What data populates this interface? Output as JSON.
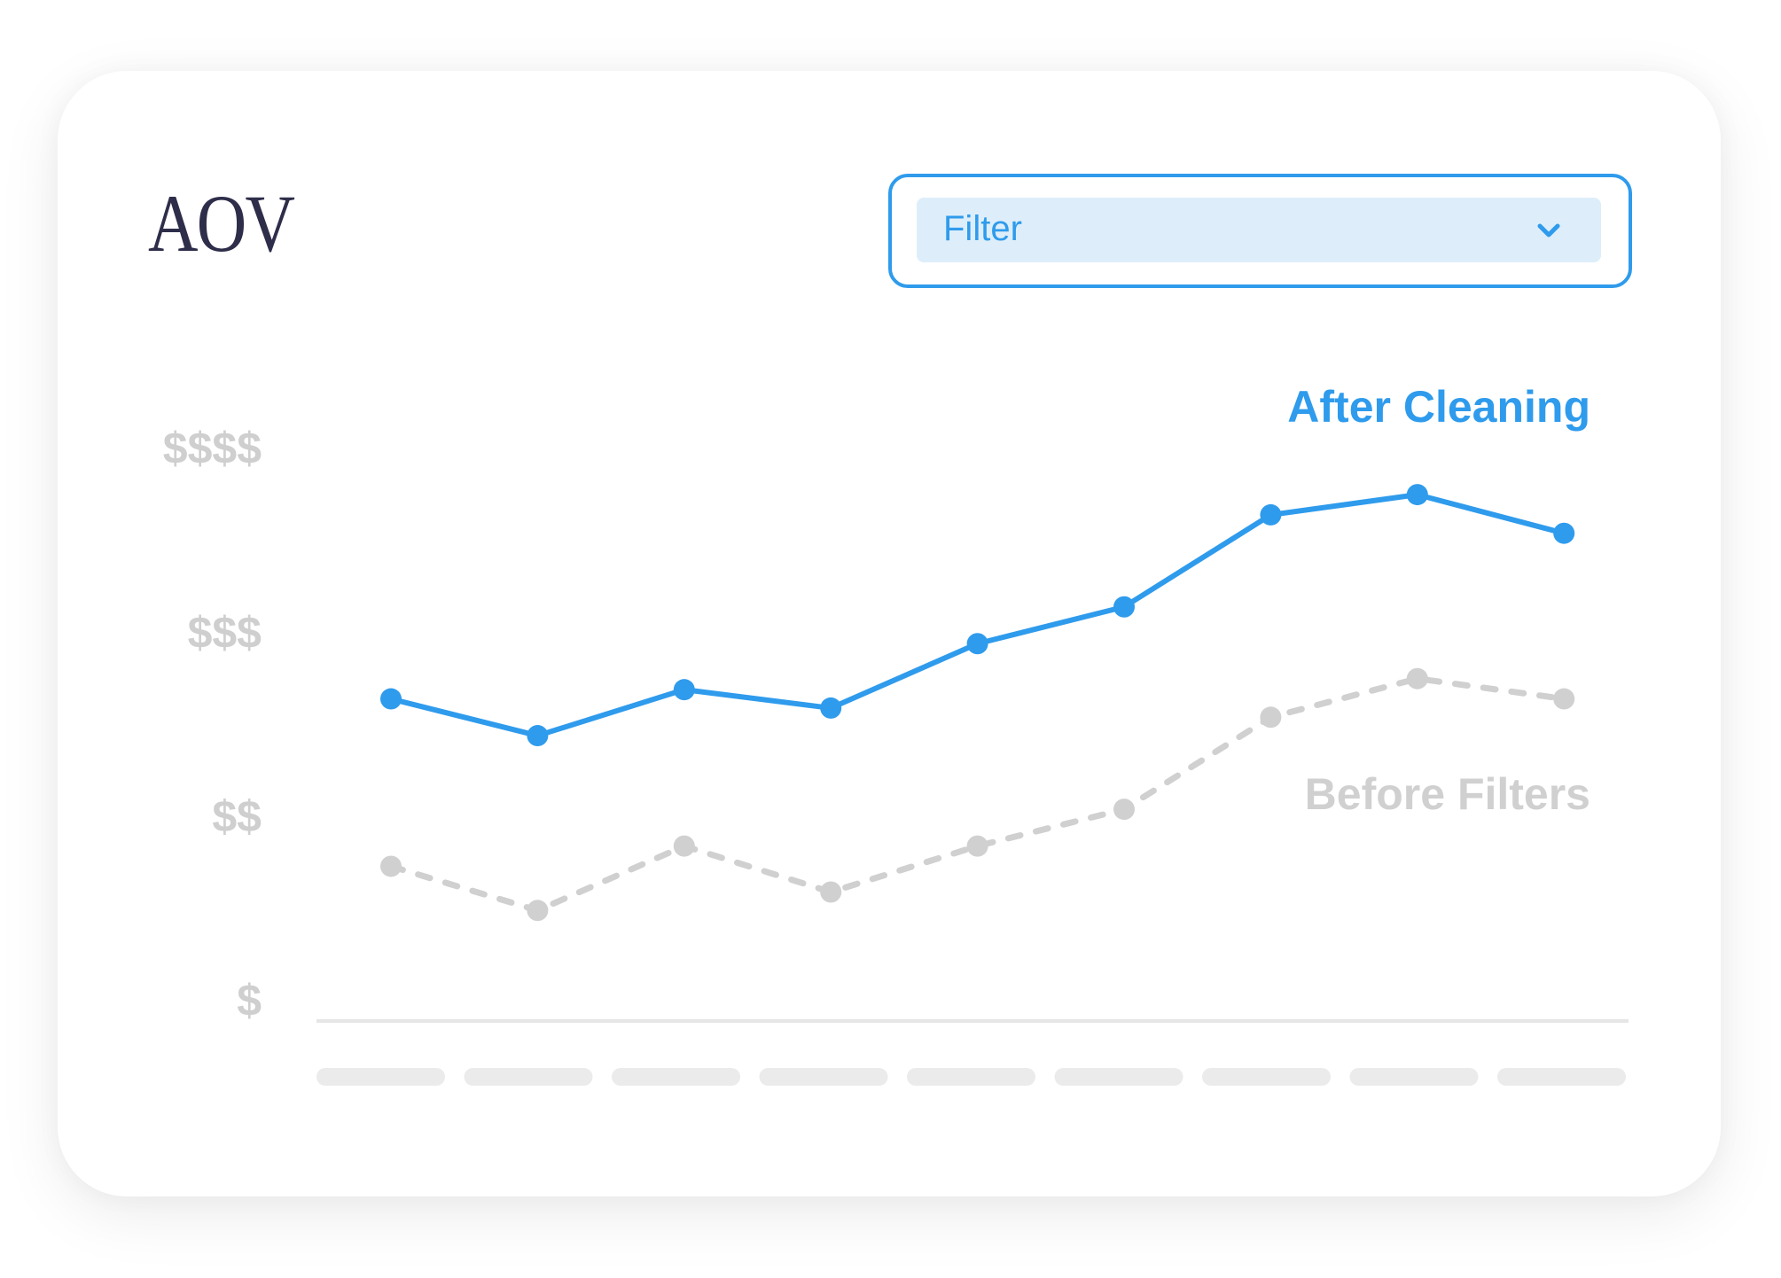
{
  "card": {
    "title": "AOV"
  },
  "filter": {
    "label": "Filter",
    "icon": "chevron-down-icon"
  },
  "chart_data": {
    "type": "line",
    "title": "",
    "xlabel": "",
    "ylabel": "",
    "categories": [
      "",
      "",
      "",
      "",
      "",
      "",
      "",
      "",
      ""
    ],
    "y_tick_labels": [
      "$",
      "$$",
      "$$$",
      "$$$$"
    ],
    "y_tick_values": [
      1,
      2,
      3,
      4
    ],
    "ylim": [
      0.89,
      4.2
    ],
    "grid": false,
    "series": [
      {
        "name": "After Cleaning",
        "color": "#2f9bec",
        "style": "solid",
        "values": [
          2.64,
          2.44,
          2.69,
          2.59,
          2.94,
          3.14,
          3.64,
          3.75,
          3.54
        ]
      },
      {
        "name": "Before Filters",
        "color": "#d0d0d0",
        "style": "dashed",
        "values": [
          1.73,
          1.49,
          1.84,
          1.59,
          1.84,
          2.04,
          2.54,
          2.75,
          2.64
        ]
      }
    ],
    "colors": {
      "axis": "#e6e6e6",
      "tick_label": "#cfcfcf",
      "placeholder_bar": "#ebebeb"
    }
  }
}
